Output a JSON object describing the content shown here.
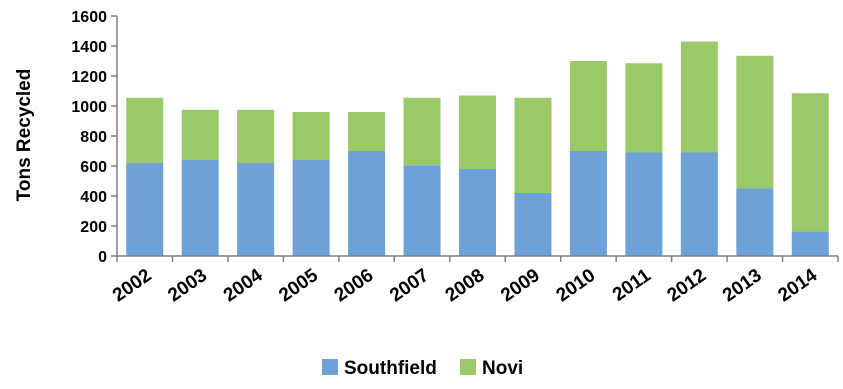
{
  "chart_data": {
    "type": "bar",
    "stacked": true,
    "title": "",
    "xlabel": "",
    "ylabel": "Tons Recycled",
    "ylim": [
      0,
      1600
    ],
    "yticks": [
      0,
      200,
      400,
      600,
      800,
      1000,
      1200,
      1400,
      1600
    ],
    "grid": false,
    "legend_position": "bottom",
    "categories": [
      "2002",
      "2003",
      "2004",
      "2005",
      "2006",
      "2007",
      "2008",
      "2009",
      "2010",
      "2011",
      "2012",
      "2013",
      "2014"
    ],
    "series": [
      {
        "name": "Southfield",
        "color": "#6fa1d9",
        "values": [
          620,
          640,
          620,
          640,
          700,
          605,
          580,
          420,
          700,
          690,
          690,
          450,
          165
        ]
      },
      {
        "name": "Novi",
        "color": "#9bc96a",
        "values": [
          435,
          335,
          355,
          320,
          260,
          450,
          490,
          635,
          600,
          595,
          740,
          885,
          920
        ]
      }
    ]
  }
}
